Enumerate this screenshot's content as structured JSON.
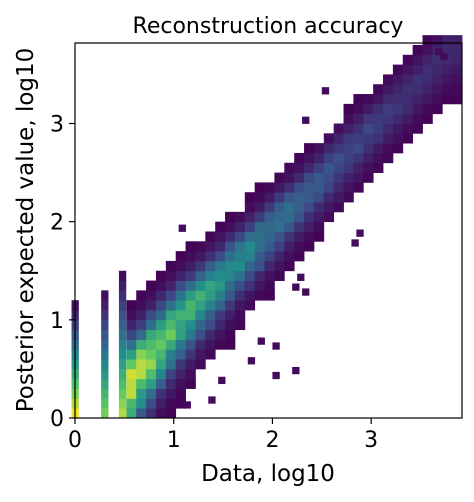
{
  "chart_data": {
    "type": "heatmap",
    "title": "Reconstruction accuracy",
    "xlabel": "Data, log10",
    "ylabel": "Posterior expected value, log10",
    "xlim": [
      0,
      3.92
    ],
    "ylim": [
      0,
      3.82
    ],
    "x_ticks": [
      {
        "value": 0,
        "label": "0"
      },
      {
        "value": 1,
        "label": "1"
      },
      {
        "value": 2,
        "label": "2"
      },
      {
        "value": 3,
        "label": "3"
      }
    ],
    "y_ticks": [
      {
        "value": 0,
        "label": "0"
      },
      {
        "value": 1,
        "label": "1"
      },
      {
        "value": 2,
        "label": "2"
      },
      {
        "value": 3,
        "label": "3"
      }
    ],
    "bin_width": 0.1,
    "colormap": [
      "#440154",
      "#3b528b",
      "#21918c",
      "#5ec962",
      "#fde725"
    ],
    "discrete_columns": [
      {
        "x": 0.0,
        "y_max": 1.2,
        "peak": 1.0
      },
      {
        "x": 0.3,
        "y_max": 1.3,
        "peak": 0.8
      },
      {
        "x": 0.48,
        "y_max": 1.5,
        "peak": 0.9
      }
    ],
    "ridge": {
      "points": [
        [
          0.5,
          0.3
        ],
        [
          1.0,
          0.95
        ],
        [
          2.0,
          1.95
        ],
        [
          3.0,
          2.95
        ],
        [
          3.8,
          3.75
        ]
      ],
      "sigma_x_min": 0.14,
      "peak_density_at_x0.5": 0.95,
      "density_at_x3.8": 0.12
    },
    "outliers": [
      [
        2.3,
        3.0
      ],
      [
        2.5,
        3.3
      ],
      [
        3.65,
        3.7
      ],
      [
        3.7,
        3.65
      ],
      [
        1.05,
        1.9
      ],
      [
        1.75,
        2.1
      ],
      [
        2.85,
        1.85
      ],
      [
        2.8,
        1.75
      ],
      [
        2.25,
        1.4
      ],
      [
        2.2,
        1.3
      ],
      [
        2.3,
        1.25
      ],
      [
        1.6,
        0.95
      ],
      [
        1.85,
        0.75
      ],
      [
        2.0,
        0.7
      ],
      [
        2.2,
        0.45
      ],
      [
        2.0,
        0.4
      ],
      [
        1.45,
        0.35
      ],
      [
        1.35,
        0.15
      ],
      [
        1.1,
        0.1
      ],
      [
        1.75,
        0.55
      ]
    ]
  }
}
